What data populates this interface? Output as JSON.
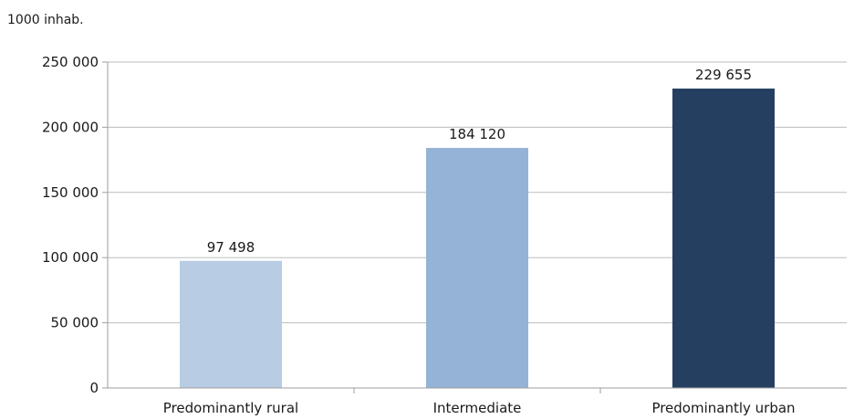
{
  "chart_data": {
    "type": "bar",
    "title": "",
    "unit_label": "1000 inhab.",
    "xlabel": "",
    "ylabel": "",
    "categories": [
      "Predominantly rural",
      "Intermediate",
      "Predominantly urban"
    ],
    "values": [
      97498,
      184120,
      229655
    ],
    "data_labels": [
      "97 498",
      "184 120",
      "229 655"
    ],
    "bar_colors": [
      "#b8cce4",
      "#95b3d7",
      "#243f60"
    ],
    "ylim": [
      0,
      250000
    ],
    "yticks": [
      0,
      50000,
      100000,
      150000,
      200000,
      250000
    ],
    "ytick_labels": [
      "0",
      "50 000",
      "100 000",
      "150 000",
      "200 000",
      "250 000"
    ],
    "grid": true,
    "legend": "none"
  }
}
